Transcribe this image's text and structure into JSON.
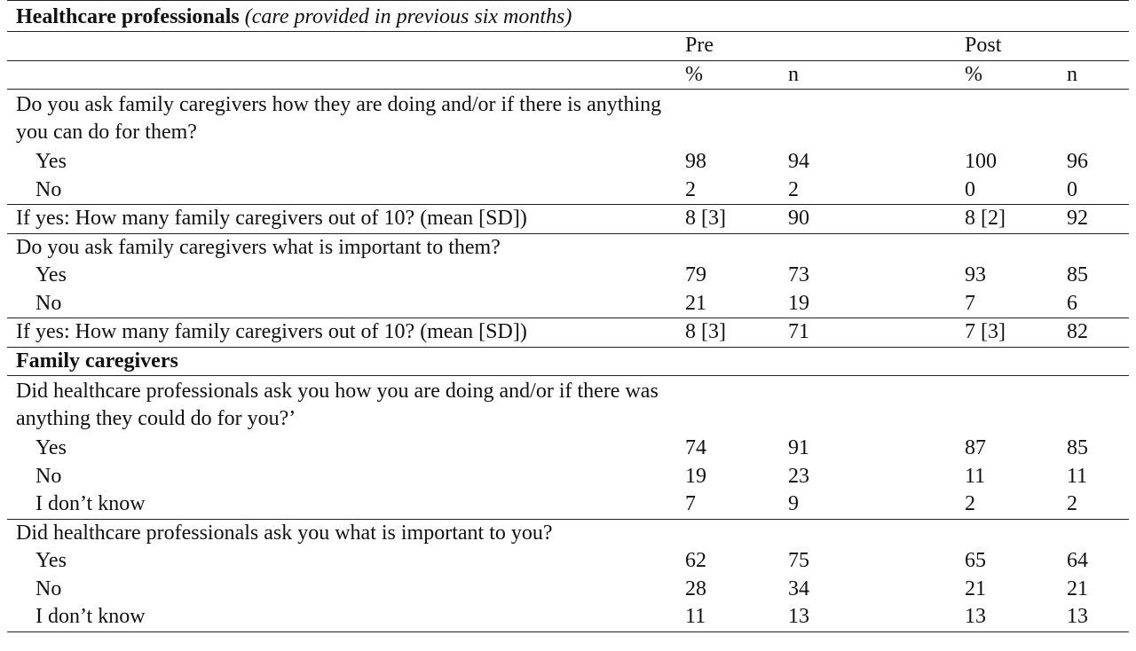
{
  "hp_section": {
    "title": "Healthcare professionals",
    "subtitle": "(care provided in previous six months)"
  },
  "columns": {
    "pre": "Pre",
    "post": "Post",
    "pct": "%",
    "n": "n"
  },
  "q1": {
    "text": "Do you ask family caregivers how they are doing and/or if there is anything you can do for them?",
    "yes": {
      "label": "Yes",
      "pre_pct": "98",
      "pre_n": "94",
      "post_pct": "100",
      "post_n": "96"
    },
    "no": {
      "label": "No",
      "pre_pct": "2",
      "pre_n": "2",
      "post_pct": "0",
      "post_n": "0"
    }
  },
  "q1_followup": {
    "text": "If yes: How many family caregivers out of 10? (mean [SD])",
    "pre_pct": "8 [3]",
    "pre_n": "90",
    "post_pct": "8 [2]",
    "post_n": "92"
  },
  "q2": {
    "text": "Do you ask family caregivers what is important to them?",
    "yes": {
      "label": "Yes",
      "pre_pct": "79",
      "pre_n": "73",
      "post_pct": "93",
      "post_n": "85"
    },
    "no": {
      "label": "No",
      "pre_pct": "21",
      "pre_n": "19",
      "post_pct": "7",
      "post_n": "6"
    }
  },
  "q2_followup": {
    "text": "If yes: How many family caregivers out of 10? (mean [SD])",
    "pre_pct": "8 [3]",
    "pre_n": "71",
    "post_pct": "7 [3]",
    "post_n": "82"
  },
  "fc_section": {
    "title": "Family caregivers"
  },
  "q3": {
    "text": "Did healthcare professionals ask you how you are doing and/or if there was anything they could do for you?’",
    "yes": {
      "label": "Yes",
      "pre_pct": "74",
      "pre_n": "91",
      "post_pct": "87",
      "post_n": "85"
    },
    "no": {
      "label": "No",
      "pre_pct": "19",
      "pre_n": "23",
      "post_pct": "11",
      "post_n": "11"
    },
    "dk": {
      "label": "I don’t know",
      "pre_pct": "7",
      "pre_n": "9",
      "post_pct": "2",
      "post_n": "2"
    }
  },
  "q4": {
    "text": "Did healthcare professionals ask you what is important to you?",
    "yes": {
      "label": "Yes",
      "pre_pct": "62",
      "pre_n": "75",
      "post_pct": "65",
      "post_n": "64"
    },
    "no": {
      "label": "No",
      "pre_pct": "28",
      "pre_n": "34",
      "post_pct": "21",
      "post_n": "21"
    },
    "dk": {
      "label": "I don’t know",
      "pre_pct": "11",
      "pre_n": "13",
      "post_pct": "13",
      "post_n": "13"
    }
  }
}
